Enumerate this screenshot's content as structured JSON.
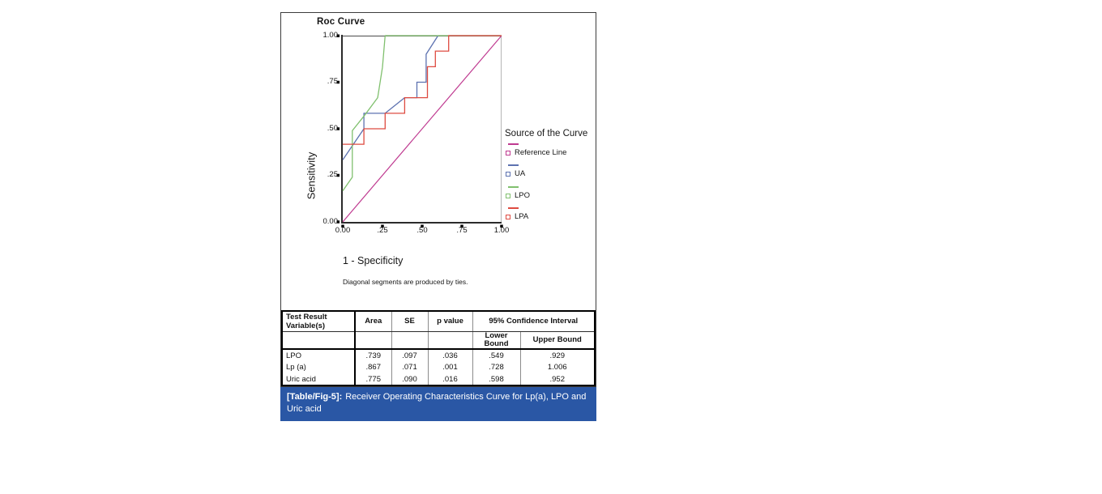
{
  "colors": {
    "caption_bg": "#2a57a5",
    "axis": "#2b2b2b",
    "frame_top": "#4a4a4a",
    "frame_right": "#b5b5b5"
  },
  "chart_data": [
    {
      "type": "line",
      "title": "Roc Curve",
      "xlabel": "1 - Specificity",
      "ylabel": "Sensitivity",
      "footnote": "Diagonal segments are produced by ties.",
      "legend_title": "Source of the Curve",
      "legend_position": "right",
      "grid": false,
      "xlim": [
        0,
        1
      ],
      "ylim": [
        0,
        1
      ],
      "x_ticks": [
        "0.00",
        ".25",
        ".50",
        ".75",
        "1.00"
      ],
      "y_ticks": [
        "1.00",
        ".75",
        ".50",
        ".25",
        "0.00"
      ],
      "series": [
        {
          "name": "Reference Line",
          "color": "#bf3a90",
          "points": [
            [
              0,
              0
            ],
            [
              1,
              1
            ]
          ]
        },
        {
          "name": "UA",
          "color": "#5d72b0",
          "points": [
            [
              0,
              0.333
            ],
            [
              0.133,
              0.5
            ],
            [
              0.133,
              0.583
            ],
            [
              0.267,
              0.583
            ],
            [
              0.39,
              0.667
            ],
            [
              0.467,
              0.667
            ],
            [
              0.467,
              0.75
            ],
            [
              0.525,
              0.75
            ],
            [
              0.525,
              0.9
            ],
            [
              0.6,
              1.0
            ]
          ]
        },
        {
          "name": "LPO",
          "color": "#80c06e",
          "points": [
            [
              0,
              0.167
            ],
            [
              0.06,
              0.24
            ],
            [
              0.06,
              0.49
            ],
            [
              0.14,
              0.575
            ],
            [
              0.22,
              0.667
            ],
            [
              0.25,
              0.83
            ],
            [
              0.267,
              1.0
            ],
            [
              1.0,
              1.0
            ]
          ]
        },
        {
          "name": "LPA",
          "color": "#de4b41",
          "points": [
            [
              0,
              0.417
            ],
            [
              0.133,
              0.417
            ],
            [
              0.133,
              0.5
            ],
            [
              0.267,
              0.5
            ],
            [
              0.267,
              0.583
            ],
            [
              0.39,
              0.583
            ],
            [
              0.39,
              0.667
            ],
            [
              0.533,
              0.667
            ],
            [
              0.533,
              0.833
            ],
            [
              0.583,
              0.833
            ],
            [
              0.583,
              0.917
            ],
            [
              0.667,
              0.917
            ],
            [
              0.667,
              1.0
            ],
            [
              1.0,
              1.0
            ]
          ]
        }
      ]
    },
    {
      "type": "table",
      "columns": [
        "Test Result Variable(s)",
        "Area",
        "SE",
        "p value",
        "Lower Bound",
        "Upper Bound"
      ],
      "group_header": "95% Confidence Interval",
      "rows": [
        [
          "LPO",
          ".739",
          ".097",
          ".036",
          ".549",
          ".929"
        ],
        [
          "Lp (a)",
          ".867",
          ".071",
          ".001",
          ".728",
          "1.006"
        ],
        [
          "Uric acid",
          ".775",
          ".090",
          ".016",
          ".598",
          ".952"
        ]
      ]
    }
  ],
  "caption": {
    "label": "[Table/Fig-5]:",
    "text": "Receiver Operating Characteristics Curve for Lp(a), LPO and Uric acid"
  }
}
